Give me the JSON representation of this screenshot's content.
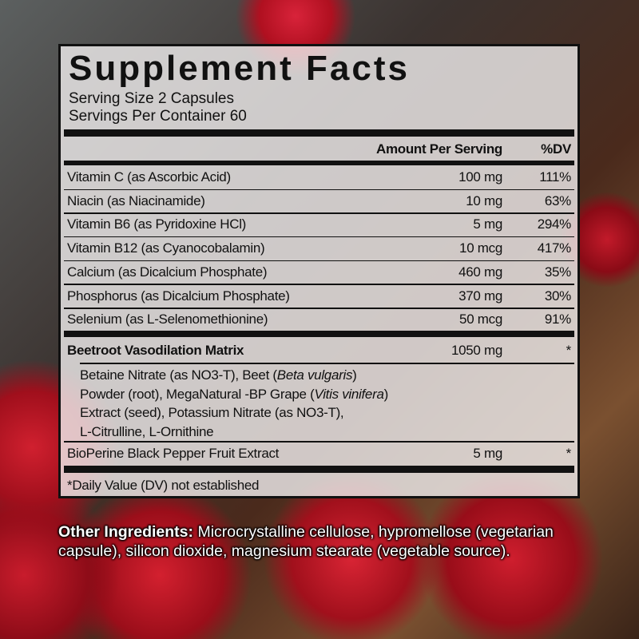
{
  "facts": {
    "title": "Supplement Facts",
    "serving_size": "Serving Size 2 Capsules",
    "servings_per_container": "Servings Per Container 60",
    "header_amount": "Amount Per Serving",
    "header_dv": "%DV",
    "nutrients": [
      {
        "name": "Vitamin C (as Ascorbic Acid)",
        "amount": "100 mg",
        "dv": "111%"
      },
      {
        "name": "Niacin (as Niacinamide)",
        "amount": "10 mg",
        "dv": "63%"
      },
      {
        "name": "Vitamin B6 (as Pyridoxine HCl)",
        "amount": "5 mg",
        "dv": "294%"
      },
      {
        "name": "Vitamin B12 (as Cyanocobalamin)",
        "amount": "10 mcg",
        "dv": "417%"
      },
      {
        "name": "Calcium (as Dicalcium Phosphate)",
        "amount": "460 mg",
        "dv": "35%"
      },
      {
        "name": "Phosphorus (as Dicalcium Phosphate)",
        "amount": "370 mg",
        "dv": "30%"
      },
      {
        "name": "Selenium (as L-Selenomethionine)",
        "amount": "50 mcg",
        "dv": "91%"
      }
    ],
    "matrix": {
      "name": "Beetroot Vasodilation Matrix",
      "amount": "1050 mg",
      "dv": "*",
      "ingredients": {
        "l1a": "Betaine Nitrate (as NO3-T), Beet (",
        "l1i": "Beta vulgaris",
        "l1b": ")",
        "l2a": "Powder (root), MegaNatural -BP Grape (",
        "l2i": "Vitis vinifera",
        "l2b": ")",
        "l3": "Extract (seed), Potassium Nitrate (as NO3-T),",
        "l4": "L-Citrulline, L-Ornithine"
      }
    },
    "bioperine": {
      "name": "BioPerine Black Pepper Fruit Extract",
      "amount": "5 mg",
      "dv": "*"
    },
    "footnote": "*Daily Value (DV) not established"
  },
  "other_ingredients": {
    "label": "Other Ingredients:",
    "text": " Microcrystalline cellulose, hypromellose (vegetarian capsule), silicon dioxide, magnesium stearate (vegetable source)."
  }
}
